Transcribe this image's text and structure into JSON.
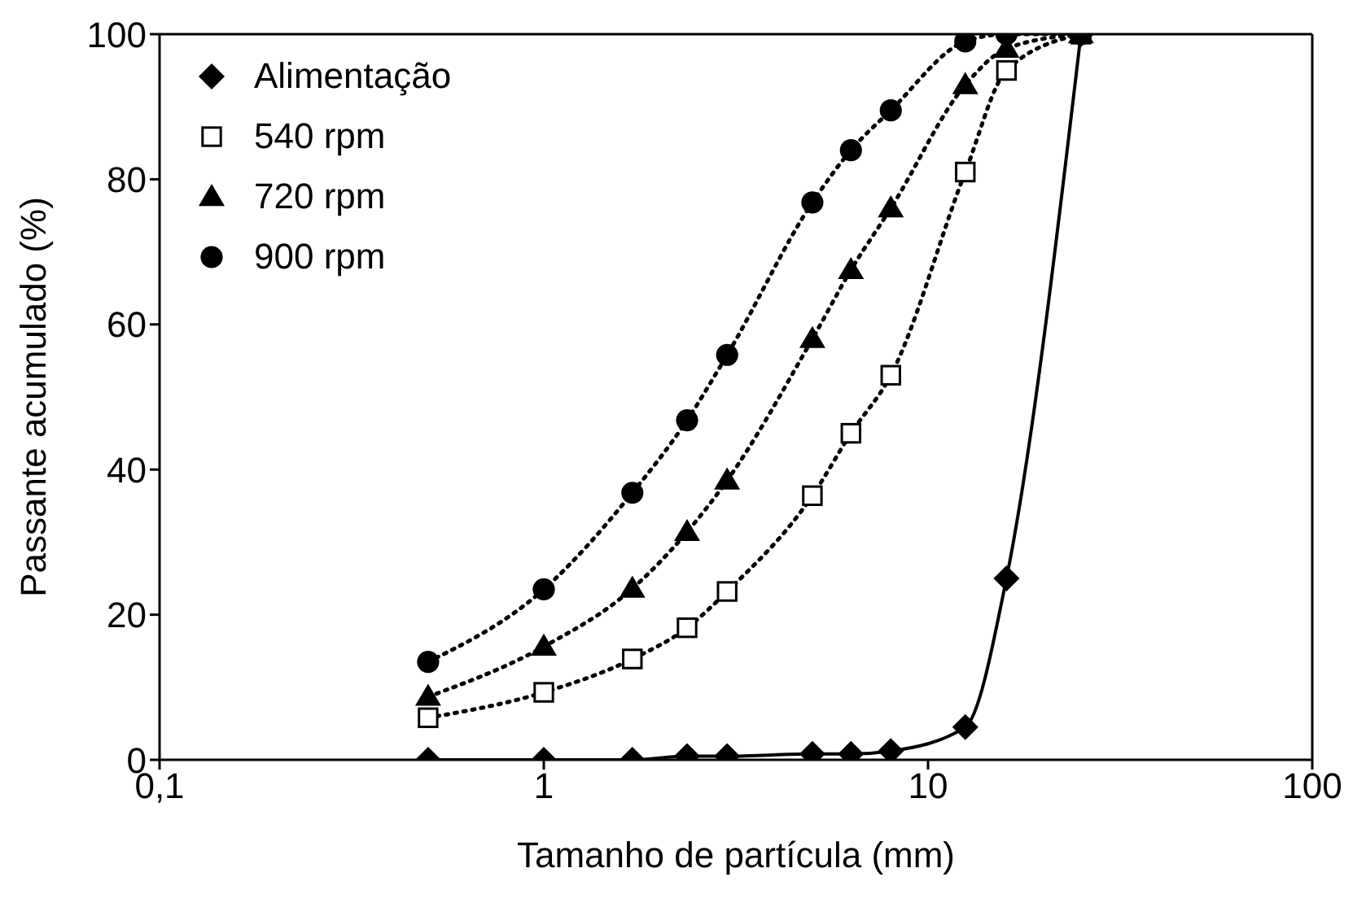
{
  "chart_data": {
    "type": "line",
    "xlabel": "Tamanho de partícula (mm)",
    "ylabel": "Passante acumulado (%)",
    "log": "x",
    "xlim": [
      0.1,
      100
    ],
    "xticks": [
      {
        "value": 0.1,
        "label": "0,1"
      },
      1,
      10,
      100
    ],
    "ylim": [
      0,
      100
    ],
    "yticks": [
      0,
      20,
      40,
      60,
      80,
      100
    ],
    "grid": false,
    "legend": "top left",
    "series": [
      {
        "name": "Alimentação",
        "color": "#000000",
        "marker": "diamond",
        "line_style": "solid",
        "x": [
          0.5,
          1,
          1.7,
          2.36,
          3,
          5,
          6.3,
          8,
          12.5,
          16,
          25
        ],
        "values": [
          0,
          0,
          0,
          0.5,
          0.5,
          0.8,
          0.8,
          1.2,
          4.5,
          25,
          100
        ]
      },
      {
        "name": "540 rpm",
        "color": "#000000",
        "marker": "square",
        "line_style": "dotted",
        "x": [
          0.5,
          1,
          1.7,
          2.36,
          3,
          5,
          6.3,
          8,
          12.5,
          16,
          25
        ],
        "values": [
          5.8,
          9.3,
          13.9,
          18.2,
          23.2,
          36.4,
          45,
          53,
          81,
          95,
          100
        ]
      },
      {
        "name": "720 rpm",
        "color": "#000000",
        "marker": "triangle",
        "line_style": "dotted",
        "x": [
          0.5,
          1,
          1.7,
          2.36,
          3,
          5,
          6.3,
          8,
          12.5,
          16,
          25
        ],
        "values": [
          8.7,
          15.6,
          23.6,
          31.4,
          38.5,
          58,
          67.5,
          76,
          93,
          98,
          100
        ]
      },
      {
        "name": "900 rpm",
        "color": "#000000",
        "marker": "circle",
        "line_style": "dotted",
        "x": [
          0.5,
          1,
          1.7,
          2.36,
          3,
          5,
          6.3,
          8,
          12.5,
          16,
          25
        ],
        "values": [
          13.5,
          23.5,
          36.8,
          46.8,
          55.8,
          76.8,
          84,
          89.5,
          99,
          100,
          100
        ]
      }
    ]
  }
}
